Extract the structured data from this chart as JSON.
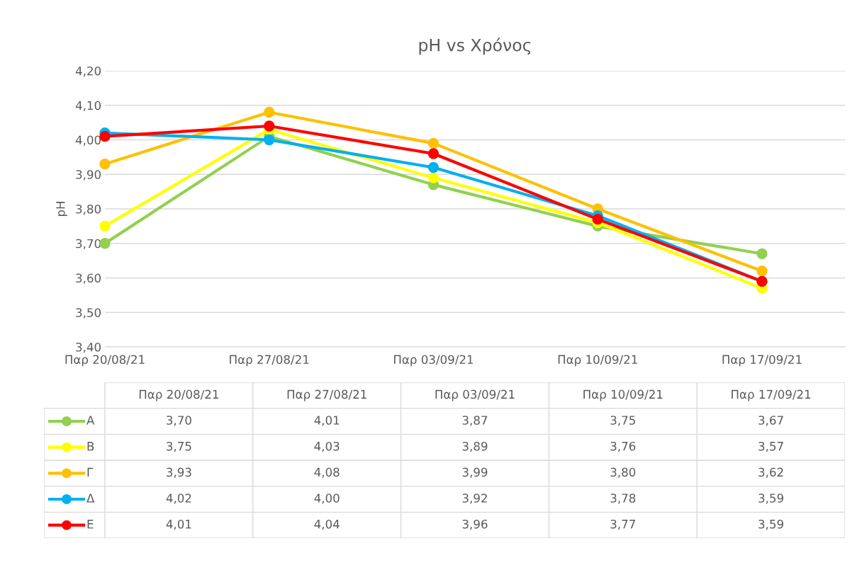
{
  "chart_data": {
    "type": "line",
    "title": "pH vs Χρόνος",
    "ylabel": "pH",
    "categories": [
      "Παρ 20/08/21",
      "Παρ 27/08/21",
      "Παρ 03/09/21",
      "Παρ 10/09/21",
      "Παρ 17/09/21"
    ],
    "series": [
      {
        "name": "A",
        "color": "#92d050",
        "values": [
          3.7,
          4.01,
          3.87,
          3.75,
          3.67
        ],
        "value_labels": [
          "3,70",
          "4,01",
          "3,87",
          "3,75",
          "3,67"
        ]
      },
      {
        "name": "B",
        "color": "#ffff00",
        "values": [
          3.75,
          4.03,
          3.89,
          3.76,
          3.57
        ],
        "value_labels": [
          "3,75",
          "4,03",
          "3,89",
          "3,76",
          "3,57"
        ]
      },
      {
        "name": "Γ",
        "color": "#ffc000",
        "values": [
          3.93,
          4.08,
          3.99,
          3.8,
          3.62
        ],
        "value_labels": [
          "3,93",
          "4,08",
          "3,99",
          "3,80",
          "3,62"
        ]
      },
      {
        "name": "Δ",
        "color": "#00b0f0",
        "values": [
          4.02,
          4.0,
          3.92,
          3.78,
          3.59
        ],
        "value_labels": [
          "4,02",
          "4,00",
          "3,92",
          "3,78",
          "3,59"
        ]
      },
      {
        "name": "E",
        "color": "#ff0000",
        "values": [
          4.01,
          4.04,
          3.96,
          3.77,
          3.59
        ],
        "value_labels": [
          "4,01",
          "4,04",
          "3,96",
          "3,77",
          "3,59"
        ]
      }
    ],
    "ylim": [
      3.4,
      4.2
    ],
    "yticks": [
      {
        "value": 3.4,
        "label": "3,40"
      },
      {
        "value": 3.5,
        "label": "3,50"
      },
      {
        "value": 3.6,
        "label": "3,60"
      },
      {
        "value": 3.7,
        "label": "3,70"
      },
      {
        "value": 3.8,
        "label": "3,80"
      },
      {
        "value": 3.9,
        "label": "3,90"
      },
      {
        "value": 4.0,
        "label": "4,00"
      },
      {
        "value": 4.1,
        "label": "4,10"
      },
      {
        "value": 4.2,
        "label": "4,20"
      }
    ],
    "grid": "y",
    "marker": "circle",
    "line_style": "solid",
    "legend": "bottom"
  }
}
